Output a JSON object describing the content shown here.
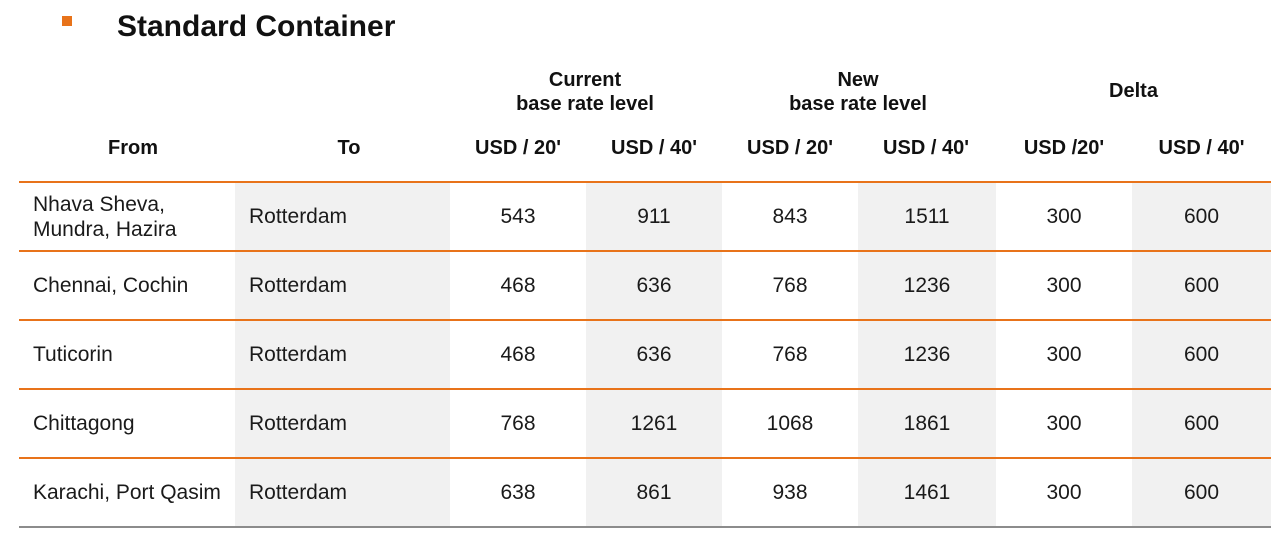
{
  "title": "Standard Container",
  "colors": {
    "accent": "#e8731a",
    "shade": "#f1f1f1",
    "bottom_rule": "#8c8c8c"
  },
  "header": {
    "groups": {
      "current": {
        "line1": "Current",
        "line2": "base rate level"
      },
      "new": {
        "line1": "New",
        "line2": "base rate level"
      },
      "delta": {
        "line1": "Delta"
      }
    },
    "columns": {
      "from": "From",
      "to": "To",
      "current_20": "USD / 20'",
      "current_40": "USD / 40'",
      "new_20": "USD / 20'",
      "new_40": "USD / 40'",
      "delta_20": "USD /20'",
      "delta_40": "USD / 40'"
    }
  },
  "rows": [
    {
      "from": "Nhava Sheva, Mundra, Hazira",
      "to": "Rotterdam",
      "current_20": "543",
      "current_40": "911",
      "new_20": "843",
      "new_40": "1511",
      "delta_20": "300",
      "delta_40": "600"
    },
    {
      "from": "Chennai, Cochin",
      "to": "Rotterdam",
      "current_20": "468",
      "current_40": "636",
      "new_20": "768",
      "new_40": "1236",
      "delta_20": "300",
      "delta_40": "600"
    },
    {
      "from": "Tuticorin",
      "to": "Rotterdam",
      "current_20": "468",
      "current_40": "636",
      "new_20": "768",
      "new_40": "1236",
      "delta_20": "300",
      "delta_40": "600"
    },
    {
      "from": "Chittagong",
      "to": "Rotterdam",
      "current_20": "768",
      "current_40": "1261",
      "new_20": "1068",
      "new_40": "1861",
      "delta_20": "300",
      "delta_40": "600"
    },
    {
      "from": "Karachi, Port Qasim",
      "to": "Rotterdam",
      "current_20": "638",
      "current_40": "861",
      "new_20": "938",
      "new_40": "1461",
      "delta_20": "300",
      "delta_40": "600"
    }
  ]
}
